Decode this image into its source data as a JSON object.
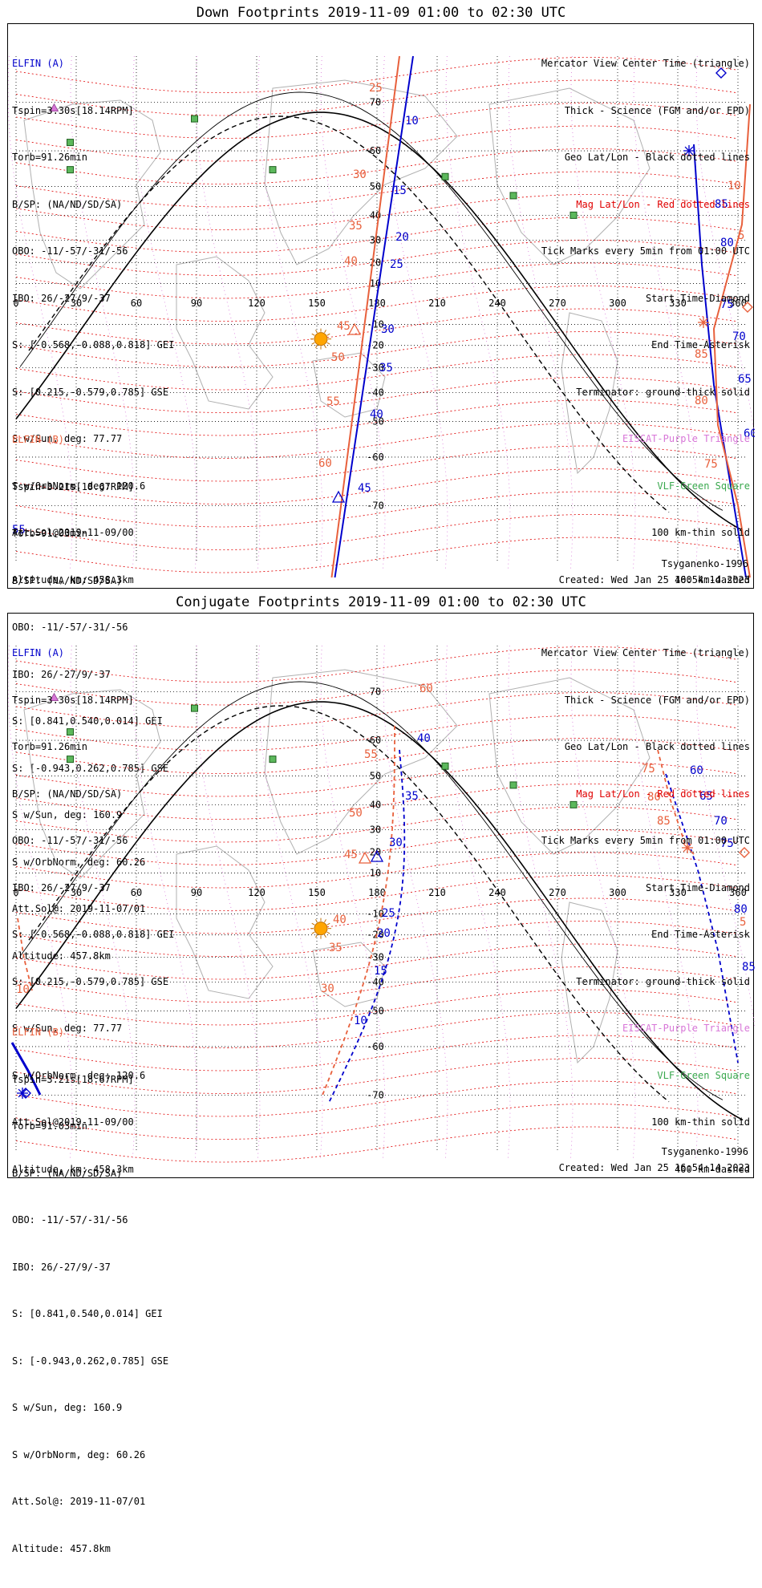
{
  "panels": [
    {
      "title": "Down Footprints 2019-11-09 01:00 to 02:30 UTC",
      "elfin_a": {
        "name": "ELFIN (A)",
        "lines": [
          "Tspin=3.30s[18.14RPM]",
          "Torb=91.26min",
          "B/SP: (NA/ND/SD/SA)",
          "OBO: -11/-57/-31/-56",
          "IBO: 26/-27/9/-37",
          "S: [-0.568,-0.088,0.818] GEI",
          "S: [0.215,-0.579,0.785] GSE",
          "S w/Sun, deg: 77.77",
          "S w/OrbNorm, deg: 120.6",
          "Att.Sol@2019-11-09/00",
          "Altitude, km: 458.3km"
        ]
      },
      "elfin_b": {
        "name": "ELFIN (B)",
        "lines": [
          "Tspin=3.21s[18.67RPM]",
          "Torb=91.03min",
          "B/SP: (NA/ND/SD/SA)",
          "OBO: -11/-57/-31/-56",
          "IBO: 26/-27/9/-37",
          "S: [0.841,0.540,0.014] GEI",
          "S: [-0.943,0.262,0.785] GSE",
          "S w/Sun, deg: 160.9",
          "S w/OrbNorm, deg: 60.26",
          "Att.Sol@: 2019-11-07/01",
          "Altitude: 457.8km"
        ]
      },
      "legend": [
        {
          "text": "Mercator View Center Time (triangle)",
          "color": "#000000"
        },
        {
          "text": "Thick - Science (FGM and/or EPD)",
          "color": "#000000"
        },
        {
          "text": "Geo Lat/Lon - Black dotted lines",
          "color": "#000000"
        },
        {
          "text": "Mag Lat/Lon - Red dotted lines",
          "color": "#e00000"
        },
        {
          "text": "Tick Marks every 5min from 01:00 UTC",
          "color": "#000000"
        },
        {
          "text": "Start Time-Diamond",
          "color": "#000000"
        },
        {
          "text": "End Time-Asterisk",
          "color": "#000000"
        },
        {
          "text": "Terminator: ground-thick solid",
          "color": "#000000"
        },
        {
          "text": "EISCAT-Purple Triangle",
          "color": "#d877d8"
        },
        {
          "text": "VLF-Green Square",
          "color": "#3aa84e"
        },
        {
          "text": "100 km-thin solid",
          "color": "#000000"
        },
        {
          "text": "400 km-dashed",
          "color": "#000000"
        }
      ],
      "model": "Tsyganenko-1996",
      "created": "Created: Wed Jan 25 16:54:14 2023",
      "blue_track_labels": [
        "10",
        "15",
        "20",
        "25",
        "30",
        "35",
        "40",
        "45",
        "60",
        "65",
        "70",
        "75",
        "80",
        "85"
      ],
      "orange_track_labels": [
        "25",
        "30",
        "35",
        "40",
        "45",
        "50",
        "55",
        "60",
        "75",
        "80",
        "85",
        "5",
        "10"
      ],
      "edge_labels": [
        "55"
      ]
    },
    {
      "title": "Conjugate Footprints 2019-11-09 01:00 to 02:30 UTC",
      "elfin_a": {
        "name": "ELFIN (A)",
        "lines": [
          "Tspin=3.30s[18.14RPM]",
          "Torb=91.26min",
          "B/SP: (NA/ND/SD/SA)",
          "OBO: -11/-57/-31/-56",
          "IBO: 26/-27/9/-37",
          "S: [-0.568,-0.088,0.818] GEI",
          "S: [0.215,-0.579,0.785] GSE",
          "S w/Sun, deg: 77.77",
          "S w/OrbNorm, deg: 120.6",
          "Att.Sol@2019-11-09/00",
          "Altitude, km: 458.3km"
        ]
      },
      "elfin_b": {
        "name": "ELFIN (B)",
        "lines": [
          "Tspin=3.21s[18.67RPM]",
          "Torb=91.03min",
          "B/SP: (NA/ND/SD/SA)",
          "OBO: -11/-57/-31/-56",
          "IBO: 26/-27/9/-37",
          "S: [0.841,0.540,0.014] GEI",
          "S: [-0.943,0.262,0.785] GSE",
          "S w/Sun, deg: 160.9",
          "S w/OrbNorm, deg: 60.26",
          "Att.Sol@: 2019-11-07/01",
          "Altitude: 457.8km"
        ]
      },
      "legend": [
        {
          "text": "Mercator View Center Time (triangle)",
          "color": "#000000"
        },
        {
          "text": "Thick - Science (FGM and/or EPD)",
          "color": "#000000"
        },
        {
          "text": "Geo Lat/Lon - Black dotted lines",
          "color": "#000000"
        },
        {
          "text": "Mag Lat/Lon - Red dotted lines",
          "color": "#e00000"
        },
        {
          "text": "Tick Marks every 5min from 01:00 UTC",
          "color": "#000000"
        },
        {
          "text": "Start Time-Diamond",
          "color": "#000000"
        },
        {
          "text": "End Time-Asterisk",
          "color": "#000000"
        },
        {
          "text": "Terminator: ground-thick solid",
          "color": "#000000"
        },
        {
          "text": "EISCAT-Purple Triangle",
          "color": "#d877d8"
        },
        {
          "text": "VLF-Green Square",
          "color": "#3aa84e"
        },
        {
          "text": "100 km-thin solid",
          "color": "#000000"
        },
        {
          "text": "400 km-dashed",
          "color": "#000000"
        }
      ],
      "model": "Tsyganenko-1996",
      "created": "Created: Wed Jan 25 16:54:14 2023",
      "blue_track_labels": [
        "40",
        "35",
        "30",
        "25",
        "20",
        "15",
        "10",
        "60",
        "65",
        "70",
        "75",
        "80",
        "85"
      ],
      "orange_track_labels": [
        "60",
        "55",
        "50",
        "45",
        "40",
        "35",
        "30",
        "75",
        "80",
        "85",
        "5",
        "10"
      ],
      "edge_labels": []
    }
  ],
  "lon_labels": [
    "0",
    "30",
    "60",
    "90",
    "120",
    "150",
    "180",
    "210",
    "240",
    "270",
    "300",
    "330",
    "360"
  ],
  "lat_labels": [
    "70",
    "60",
    "50",
    "40",
    "30",
    "20",
    "10",
    "-10",
    "-20",
    "-30",
    "-40",
    "-50",
    "-60",
    "-70"
  ],
  "colors": {
    "elfin_a": "#0000cc",
    "elfin_b": "#e8603c",
    "mag_grid": "#e00000",
    "geo_grid": "#000000",
    "eiscat": "#d877d8",
    "vlf": "#3aa84e",
    "sun": "#ffa500"
  }
}
